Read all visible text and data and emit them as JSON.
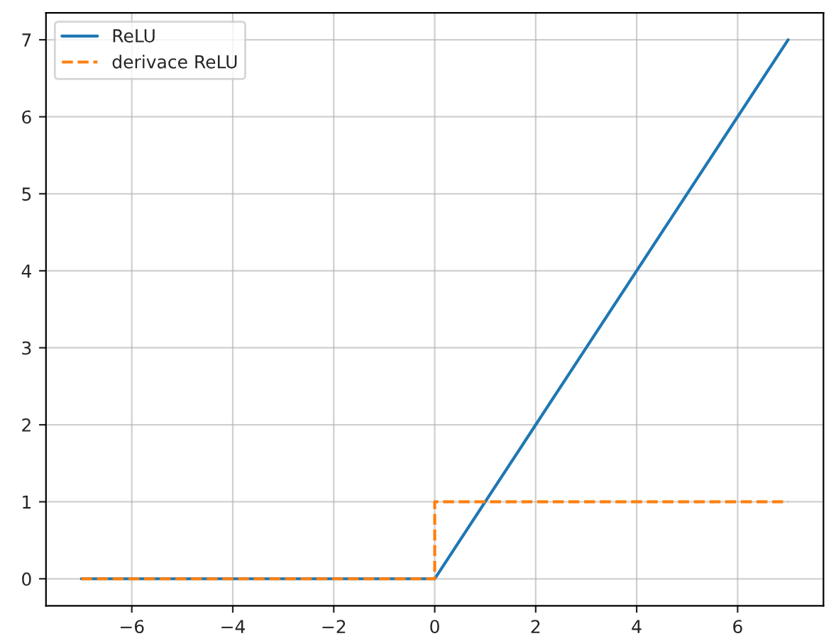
{
  "chart_data": {
    "type": "line",
    "xlim": [
      -7.7,
      7.7
    ],
    "ylim": [
      -0.35,
      7.35
    ],
    "xticks": [
      {
        "value": -6,
        "label": "−6"
      },
      {
        "value": -4,
        "label": "−4"
      },
      {
        "value": -2,
        "label": "−2"
      },
      0,
      2,
      4,
      6
    ],
    "yticks": [
      0,
      1,
      2,
      3,
      4,
      5,
      6,
      7
    ],
    "grid": true,
    "legend": "top left",
    "series": [
      {
        "name": "ReLU",
        "color": "#1f77b4",
        "x": [
          -7,
          0,
          7
        ],
        "values": [
          0,
          0,
          7
        ],
        "line_style": "solid"
      },
      {
        "name": "derivace ReLU",
        "color": "#ff7f0e",
        "x": [
          -7,
          0,
          0,
          7
        ],
        "values": [
          0,
          0,
          1,
          1
        ],
        "line_style": "dashed"
      }
    ]
  }
}
